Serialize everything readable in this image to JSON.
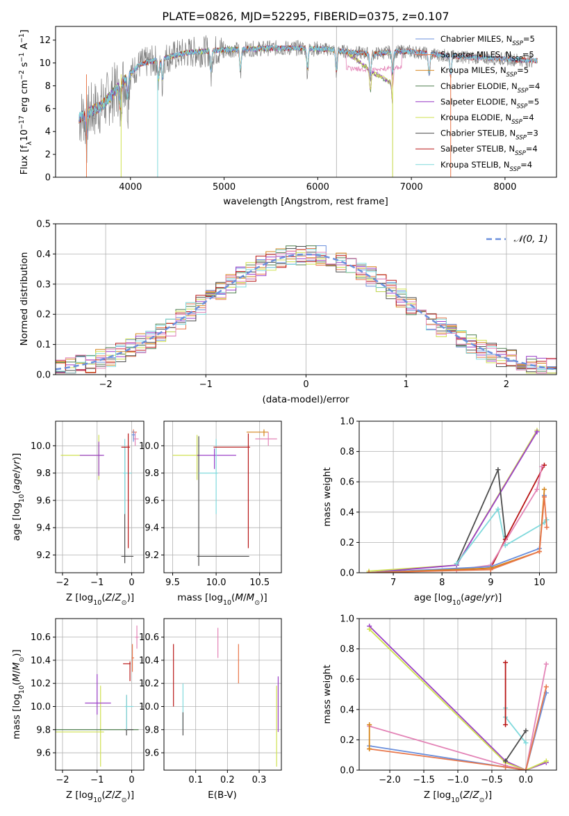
{
  "title": "PLATE=0826, MJD=52295, FIBERID=0375, z=0.107",
  "colors": {
    "chabrier_miles": "#6a8fdc",
    "salpeter_miles": "#e8764a",
    "kroupa_miles": "#d58418",
    "chabrier_elodie": "#4f7f4f",
    "salpeter_elodie": "#9a3ec7",
    "kroupa_elodie": "#cfe04f",
    "chabrier_stelib": "#4c4c4c",
    "salpeter_stelib": "#b81414",
    "kroupa_stelib": "#7fd9dc",
    "pink": "#e383b6",
    "normal": "#6a8fdc",
    "grid": "#b0b0b0"
  },
  "chart_data": [
    {
      "id": "spectrum",
      "type": "line",
      "xlabel": "wavelength [Angstrom, rest frame]",
      "ylabel": "Flux [f_λ 10^-17 erg cm^-2 s^-1 A^-1]",
      "xlim": [
        3200,
        8550
      ],
      "ylim": [
        0,
        13.2
      ],
      "xticks": [
        4000,
        5000,
        6000,
        7000,
        8000
      ],
      "yticks": [
        0,
        2,
        4,
        6,
        8,
        10,
        12
      ],
      "legend_position": "top-right",
      "legend": [
        {
          "key": "chabrier_miles",
          "label": "Chabrier MILES, N_SSP=5"
        },
        {
          "key": "salpeter_miles",
          "label": "Salpeter MILES, N_SSP=5"
        },
        {
          "key": "kroupa_miles",
          "label": "Kroupa MILES, N_SSP=5"
        },
        {
          "key": "chabrier_elodie",
          "label": "Chabrier ELODIE, N_SSP=4"
        },
        {
          "key": "salpeter_elodie",
          "label": "Salpeter ELODIE, N_SSP=5"
        },
        {
          "key": "kroupa_elodie",
          "label": "Kroupa ELODIE, N_SSP=4"
        },
        {
          "key": "chabrier_stelib",
          "label": "Chabrier STELIB, N_SSP=3"
        },
        {
          "key": "salpeter_stelib",
          "label": "Salpeter STELIB, N_SSP=4"
        },
        {
          "key": "kroupa_stelib",
          "label": "Kroupa STELIB, N_SSP=4"
        }
      ],
      "continuum": [
        [
          3450,
          5.2
        ],
        [
          3700,
          6.3
        ],
        [
          3950,
          8.6
        ],
        [
          4100,
          9.9
        ],
        [
          4300,
          10.3
        ],
        [
          4600,
          10.9
        ],
        [
          4900,
          11.1
        ],
        [
          5200,
          11.2
        ],
        [
          5500,
          11.3
        ],
        [
          5800,
          11.3
        ],
        [
          6100,
          11.2
        ],
        [
          6400,
          10.9
        ],
        [
          6600,
          10.8
        ],
        [
          6800,
          11.0
        ],
        [
          7000,
          11.0
        ],
        [
          7300,
          10.7
        ],
        [
          7600,
          10.5
        ],
        [
          7900,
          10.4
        ],
        [
          8300,
          10.2
        ]
      ],
      "absorption_lines": [
        3530,
        3890,
        3970,
        4300,
        4340,
        4860,
        5175,
        5890,
        6200,
        6563,
        6800,
        7190,
        7420
      ],
      "elodie_cutoff_dip": [
        [
          6350,
          9.2
        ],
        [
          6500,
          8.8
        ],
        [
          6650,
          8.3
        ],
        [
          6800,
          7.9
        ]
      ]
    },
    {
      "id": "residuals",
      "type": "histogram",
      "xlabel": "(data-model)/error",
      "ylabel": "Normed distribution",
      "xlim": [
        -2.5,
        2.5
      ],
      "ylim": [
        0,
        0.5
      ],
      "xticks": [
        -2,
        -1,
        0,
        1,
        2
      ],
      "yticks": [
        0,
        0.1,
        0.2,
        0.3,
        0.4,
        0.5
      ],
      "bin_width": 0.1,
      "bin_start": -2.5,
      "normal_label": "N(0, 1)",
      "legend_position": "top-right",
      "series_keys": [
        "chabrier_miles",
        "salpeter_miles",
        "kroupa_miles",
        "chabrier_elodie",
        "salpeter_elodie",
        "kroupa_elodie",
        "chabrier_stelib",
        "salpeter_stelib",
        "kroupa_stelib",
        "pink"
      ]
    },
    {
      "id": "age_vs_Z",
      "type": "errorbar",
      "xlabel": "Z [log10(Z/Z⊙)]",
      "ylabel": "age  [log10(age/yr)]",
      "xlim": [
        -2.2,
        0.35
      ],
      "ylim": [
        9.07,
        10.18
      ],
      "xticks": [
        -2,
        -1,
        0
      ],
      "yticks": [
        9.2,
        9.4,
        9.6,
        9.8,
        10.0
      ],
      "points": [
        {
          "c": "kroupa_elodie",
          "x": -0.95,
          "xe": [
            1.1,
            0.1
          ],
          "y": 9.93,
          "ye": [
            0.18,
            0.15
          ]
        },
        {
          "c": "salpeter_elodie",
          "x": -0.95,
          "xe": [
            0.55,
            0.15
          ],
          "y": 9.93,
          "ye": [
            0.15,
            0.1
          ]
        },
        {
          "c": "chabrier_stelib",
          "x": -0.2,
          "xe": [
            0.1,
            0.25
          ],
          "y": 9.19,
          "ye": [
            0.05,
            0.8
          ]
        },
        {
          "c": "kroupa_stelib",
          "x": -0.2,
          "xe": [
            0.05,
            0.2
          ],
          "y": 9.8,
          "ye": [
            0.3,
            0.25
          ]
        },
        {
          "c": "salpeter_stelib",
          "x": -0.1,
          "xe": [
            0.2,
            0.05
          ],
          "y": 9.99,
          "ye": [
            0.74,
            0.1
          ]
        },
        {
          "c": "salpeter_miles",
          "x": 0.05,
          "xe": [
            0.05,
            0.1
          ],
          "y": 10.1,
          "ye": [
            0.05,
            0.02
          ]
        },
        {
          "c": "pink",
          "x": 0.1,
          "xe": [
            0.05,
            0.1
          ],
          "y": 10.05,
          "ye": [
            0.05,
            0.05
          ]
        },
        {
          "c": "chabrier_miles",
          "x": 0.05,
          "xe": [
            0.05,
            0.05
          ],
          "y": 10.08,
          "ye": [
            0.05,
            0.03
          ]
        }
      ]
    },
    {
      "id": "age_vs_mass",
      "type": "errorbar",
      "xlabel": "mass [log10(M/M⊙)]",
      "ylabel": "",
      "xlim": [
        9.4,
        10.75
      ],
      "ylim": [
        9.07,
        10.18
      ],
      "xticks": [
        9.5,
        10.0,
        10.5
      ],
      "yticks": [
        9.2,
        9.4,
        9.6,
        9.8,
        10.0
      ],
      "points": [
        {
          "c": "kroupa_elodie",
          "x": 9.78,
          "xe": [
            0.28,
            0.02
          ],
          "y": 9.93,
          "ye": [
            0.18,
            0.15
          ]
        },
        {
          "c": "salpeter_elodie",
          "x": 9.98,
          "xe": [
            0.2,
            0.25
          ],
          "y": 9.93,
          "ye": [
            0.1,
            0.05
          ]
        },
        {
          "c": "chabrier_stelib",
          "x": 9.8,
          "xe": [
            0.02,
            0.58
          ],
          "y": 9.19,
          "ye": [
            0.07,
            0.88
          ]
        },
        {
          "c": "kroupa_stelib",
          "x": 10.0,
          "xe": [
            0.2,
            0.02
          ],
          "y": 9.8,
          "ye": [
            0.3,
            0.25
          ]
        },
        {
          "c": "salpeter_stelib",
          "x": 10.37,
          "xe": [
            0.4,
            0.02
          ],
          "y": 9.99,
          "ye": [
            0.74,
            0.1
          ]
        },
        {
          "c": "kroupa_miles",
          "x": 10.55,
          "xe": [
            0.2,
            0.05
          ],
          "y": 10.1,
          "ye": [
            0.03,
            0.02
          ]
        },
        {
          "c": "pink",
          "x": 10.6,
          "xe": [
            0.15,
            0.1
          ],
          "y": 10.05,
          "ye": [
            0.05,
            0.05
          ]
        }
      ]
    },
    {
      "id": "weight_vs_age",
      "type": "line",
      "xlabel": "age  [log10(age/yr)]",
      "ylabel": "mass weight",
      "xlim": [
        6.3,
        10.35
      ],
      "ylim": [
        0,
        1
      ],
      "xticks": [
        7,
        8,
        9,
        10
      ],
      "yticks": [
        0.0,
        0.2,
        0.4,
        0.6,
        0.8,
        1.0
      ],
      "series": [
        {
          "c": "kroupa_elodie",
          "x": [
            6.5,
            8.3,
            9.95
          ],
          "y": [
            0.01,
            0.05,
            0.94
          ]
        },
        {
          "c": "salpeter_elodie",
          "x": [
            6.5,
            8.3,
            9.95
          ],
          "y": [
            0.0,
            0.05,
            0.93
          ]
        },
        {
          "c": "chabrier_stelib",
          "x": [
            8.3,
            9.15,
            9.3
          ],
          "y": [
            0.06,
            0.68,
            0.24
          ]
        },
        {
          "c": "kroupa_stelib",
          "x": [
            8.3,
            9.15,
            9.3,
            10.1,
            10.15
          ],
          "y": [
            0.06,
            0.42,
            0.18,
            0.33,
            0.35
          ]
        },
        {
          "c": "salpeter_stelib",
          "x": [
            8.3,
            9.0,
            9.3,
            10.1
          ],
          "y": [
            0.02,
            0.03,
            0.22,
            0.71
          ]
        },
        {
          "c": "pink",
          "x": [
            8.3,
            9.0,
            9.95,
            10.05
          ],
          "y": [
            0.02,
            0.05,
            0.55,
            0.7
          ]
        },
        {
          "c": "chabrier_miles",
          "x": [
            6.5,
            9.0,
            10.0,
            10.1
          ],
          "y": [
            0.0,
            0.04,
            0.16,
            0.51
          ]
        },
        {
          "c": "kroupa_miles",
          "x": [
            6.5,
            9.0,
            10.0,
            10.1
          ],
          "y": [
            0.0,
            0.03,
            0.14,
            0.55
          ]
        },
        {
          "c": "salpeter_miles",
          "x": [
            6.5,
            9.0,
            10.0,
            10.1,
            10.15
          ],
          "y": [
            0.0,
            0.02,
            0.14,
            0.5,
            0.3
          ]
        }
      ]
    },
    {
      "id": "mass_vs_Z",
      "type": "errorbar",
      "xlabel": "Z [log10(Z/Z⊙)]",
      "ylabel": "mass [log10(M/M⊙)]",
      "xlim": [
        -2.2,
        0.35
      ],
      "ylim": [
        9.45,
        10.76
      ],
      "xticks": [
        -2,
        -1,
        0
      ],
      "yticks": [
        9.6,
        9.8,
        10.0,
        10.2,
        10.4,
        10.6
      ],
      "points": [
        {
          "c": "kroupa_elodie",
          "x": -0.9,
          "xe": [
            1.3,
            0.1
          ],
          "y": 9.78,
          "ye": [
            0.3,
            0.4
          ]
        },
        {
          "c": "chabrier_elodie",
          "x": -2.3,
          "xe": [
            0.02,
            2.5
          ],
          "y": 9.8,
          "ye": [
            0.01,
            0.01
          ]
        },
        {
          "c": "salpeter_elodie",
          "x": -1.0,
          "xe": [
            0.35,
            0.4
          ],
          "y": 10.03,
          "ye": [
            0.1,
            0.25
          ]
        },
        {
          "c": "chabrier_stelib",
          "x": -0.15,
          "xe": [
            0.05,
            0.2
          ],
          "y": 9.8,
          "ye": [
            0.05,
            0.3
          ]
        },
        {
          "c": "kroupa_stelib",
          "x": -0.15,
          "xe": [
            0.05,
            0.2
          ],
          "y": 10.0,
          "ye": [
            0.2,
            0.1
          ]
        },
        {
          "c": "salpeter_stelib",
          "x": -0.05,
          "xe": [
            0.2,
            0.02
          ],
          "y": 10.37,
          "ye": [
            0.15,
            0.02
          ]
        },
        {
          "c": "salpeter_miles",
          "x": 0.02,
          "xe": [
            0.02,
            0.05
          ],
          "y": 10.42,
          "ye": [
            0.12,
            0.12
          ]
        },
        {
          "c": "pink",
          "x": 0.15,
          "xe": [
            0.05,
            0.05
          ],
          "y": 10.6,
          "ye": [
            0.1,
            0.1
          ]
        }
      ]
    },
    {
      "id": "mass_vs_ebv",
      "type": "errorbar",
      "xlabel": "E(B-V)",
      "ylabel": "",
      "xlim": [
        0.0,
        0.37
      ],
      "ylim": [
        9.45,
        10.76
      ],
      "xticks": [
        0.1,
        0.2,
        0.3
      ],
      "yticks": [
        9.6,
        9.8,
        10.0,
        10.2,
        10.4,
        10.6
      ],
      "points": [
        {
          "c": "salpeter_stelib",
          "x": 0.03,
          "xe": [
            0,
            0
          ],
          "y": 10.27,
          "ye": [
            0.27,
            0.27
          ]
        },
        {
          "c": "kroupa_stelib",
          "x": 0.06,
          "xe": [
            0,
            0
          ],
          "y": 10.0,
          "ye": [
            0.2,
            0.2
          ]
        },
        {
          "c": "chabrier_stelib",
          "x": 0.06,
          "xe": [
            0,
            0
          ],
          "y": 9.85,
          "ye": [
            0.1,
            0.1
          ]
        },
        {
          "c": "pink",
          "x": 0.17,
          "xe": [
            0,
            0
          ],
          "y": 10.55,
          "ye": [
            0.13,
            0.13
          ]
        },
        {
          "c": "salpeter_miles",
          "x": 0.235,
          "xe": [
            0,
            0
          ],
          "y": 10.37,
          "ye": [
            0.17,
            0.17
          ]
        },
        {
          "c": "kroupa_elodie",
          "x": 0.355,
          "xe": [
            0,
            0
          ],
          "y": 9.78,
          "ye": [
            0.3,
            0.4
          ]
        },
        {
          "c": "salpeter_elodie",
          "x": 0.36,
          "xe": [
            0,
            0
          ],
          "y": 10.03,
          "ye": [
            0.25,
            0.23
          ]
        }
      ]
    },
    {
      "id": "weight_vs_Z",
      "type": "line",
      "xlabel": "Z [log10(Z/Z⊙)]",
      "ylabel": "mass weight",
      "xlim": [
        -2.45,
        0.45
      ],
      "ylim": [
        0,
        1
      ],
      "xticks": [
        -2.0,
        -1.5,
        -1.0,
        -0.5,
        0.0
      ],
      "yticks": [
        0.0,
        0.2,
        0.4,
        0.6,
        0.8,
        1.0
      ],
      "series": [
        {
          "c": "salpeter_elodie",
          "x": [
            -2.3,
            -0.3,
            0.0,
            0.3
          ],
          "y": [
            0.95,
            0.06,
            0.0,
            0.05
          ]
        },
        {
          "c": "kroupa_elodie",
          "x": [
            -2.3,
            -0.3,
            0.0,
            0.3
          ],
          "y": [
            0.93,
            0.05,
            0.0,
            0.06
          ]
        },
        {
          "c": "pink",
          "x": [
            -2.3,
            -0.3,
            0.0,
            0.3
          ],
          "y": [
            0.29,
            0.03,
            0.0,
            0.7
          ]
        },
        {
          "c": "chabrier_miles",
          "x": [
            -2.3,
            -0.3,
            0.0,
            0.3
          ],
          "y": [
            0.16,
            0.02,
            0.0,
            0.51
          ]
        },
        {
          "c": "salpeter_miles",
          "x": [
            -2.3,
            -0.3,
            0.0,
            0.3
          ],
          "y": [
            0.14,
            0.02,
            0.0,
            0.55
          ]
        },
        {
          "c": "kroupa_miles",
          "x": [
            -2.3,
            -2.3
          ],
          "y": [
            0.14,
            0.3
          ]
        },
        {
          "c": "kroupa_stelib",
          "x": [
            -0.3,
            -0.3,
            0.0
          ],
          "y": [
            0.41,
            0.35,
            0.18
          ]
        },
        {
          "c": "chabrier_stelib",
          "x": [
            -0.3,
            0.0
          ],
          "y": [
            0.06,
            0.26
          ]
        },
        {
          "c": "salpeter_stelib",
          "x": [
            -0.3,
            -0.3
          ],
          "y": [
            0.71,
            0.3
          ]
        }
      ]
    }
  ]
}
